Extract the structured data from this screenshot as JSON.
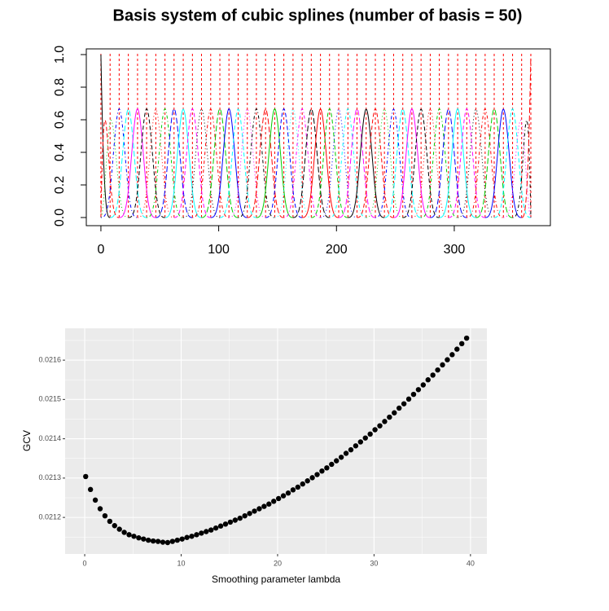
{
  "chart_data": [
    {
      "type": "basis",
      "title": "Basis system of cubic splines (number of basis = 50)",
      "knots": [
        0,
        7.8,
        15.5,
        23.3,
        31.1,
        38.8,
        46.6,
        54.4,
        62.1,
        69.9,
        77.7,
        85.4,
        93.2,
        101.0,
        108.7,
        116.5,
        124.3,
        132.0,
        139.8,
        147.6,
        155.3,
        163.1,
        170.9,
        178.6,
        186.4,
        194.1,
        201.9,
        209.7,
        217.4,
        225.2,
        233.0,
        240.7,
        248.5,
        256.3,
        264.0,
        271.8,
        279.6,
        287.3,
        295.1,
        302.9,
        310.6,
        318.4,
        326.2,
        333.9,
        341.7,
        349.5,
        357.2,
        365.0
      ],
      "colors": [
        "#000000",
        "#ff0000",
        "#00cd00",
        "#0000ff",
        "#00ffff",
        "#ff00ff"
      ],
      "knot_color": "#ff0000",
      "xlim": [
        -12.4,
        381.6
      ],
      "xticks": [
        0,
        100,
        200,
        300
      ],
      "ylim": [
        -0.05,
        1.035
      ],
      "yticks": [
        {
          "value": 0,
          "label": "0.0"
        },
        0.2,
        0.4,
        0.6,
        0.8,
        {
          "value": 1,
          "label": "1.0"
        }
      ]
    },
    {
      "type": "scatter",
      "x_label": "Smoothing parameter lambda",
      "y_label": "GCV",
      "color": "#000000",
      "grid": true,
      "x": [
        0.1,
        0.6,
        1.1,
        1.6,
        2.1,
        2.6,
        3.1,
        3.6,
        4.1,
        4.6,
        5.1,
        5.6,
        6.1,
        6.6,
        7.1,
        7.6,
        8.1,
        8.6,
        9.1,
        9.6,
        10.1,
        10.6,
        11.1,
        11.6,
        12.1,
        12.6,
        13.1,
        13.6,
        14.1,
        14.6,
        15.1,
        15.6,
        16.1,
        16.6,
        17.1,
        17.6,
        18.1,
        18.6,
        19.1,
        19.6,
        20.1,
        20.6,
        21.1,
        21.6,
        22.1,
        22.6,
        23.1,
        23.6,
        24.1,
        24.6,
        25.1,
        25.6,
        26.1,
        26.6,
        27.1,
        27.6,
        28.1,
        28.6,
        29.1,
        29.6,
        30.1,
        30.6,
        31.1,
        31.6,
        32.1,
        32.6,
        33.1,
        33.6,
        34.1,
        34.6,
        35.1,
        35.6,
        36.1,
        36.6,
        37.1,
        37.6,
        38.1,
        38.6,
        39.1,
        39.6
      ],
      "values": [
        0.021304,
        0.021271,
        0.021244,
        0.021222,
        0.021204,
        0.02119,
        0.021179,
        0.02117,
        0.021162,
        0.021156,
        0.021152,
        0.021148,
        0.021145,
        0.021142,
        0.02114,
        0.021139,
        0.021137,
        0.021136,
        0.021139,
        0.021142,
        0.021145,
        0.021149,
        0.021152,
        0.021156,
        0.02116,
        0.021164,
        0.021168,
        0.021173,
        0.021178,
        0.021183,
        0.021188,
        0.021193,
        0.021198,
        0.021204,
        0.02121,
        0.021216,
        0.021222,
        0.021228,
        0.021234,
        0.021241,
        0.021248,
        0.021255,
        0.021262,
        0.02127,
        0.021277,
        0.021285,
        0.021293,
        0.021301,
        0.021309,
        0.021318,
        0.021326,
        0.021335,
        0.021344,
        0.021353,
        0.021363,
        0.021372,
        0.021382,
        0.021392,
        0.021402,
        0.021412,
        0.021423,
        0.021433,
        0.021444,
        0.021455,
        0.021466,
        0.021478,
        0.021489,
        0.021501,
        0.021513,
        0.021525,
        0.021537,
        0.02155,
        0.021562,
        0.021575,
        0.021588,
        0.021601,
        0.021614,
        0.021628,
        0.021642,
        0.021656
      ],
      "xlim": [
        -2.03,
        41.7
      ],
      "xticks": [
        0,
        10,
        20,
        30,
        40
      ],
      "ylim": [
        0.021107,
        0.021681
      ],
      "yticks": [
        0.0212,
        0.0213,
        0.0214,
        0.0215,
        0.0216
      ]
    }
  ]
}
